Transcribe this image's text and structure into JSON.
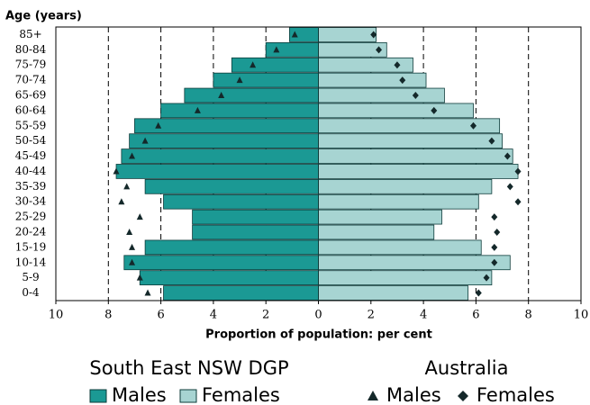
{
  "chart_data": {
    "type": "pyramid",
    "y_label": "Age (years)",
    "x_label": "Proportion of population: per cent",
    "categories": [
      "85+",
      "80-84",
      "75-79",
      "70-74",
      "65-69",
      "60-64",
      "55-59",
      "50-54",
      "45-49",
      "40-44",
      "35-39",
      "30-34",
      "25-29",
      "20-24",
      "15-19",
      "10-14",
      "5-9",
      "0-4"
    ],
    "xlim": [
      -10,
      10
    ],
    "xticks": [
      {
        "value": -10,
        "label": "10"
      },
      {
        "value": -8,
        "label": "8"
      },
      {
        "value": -6,
        "label": "6"
      },
      {
        "value": -4,
        "label": "4"
      },
      {
        "value": -2,
        "label": "2"
      },
      0,
      2,
      4,
      6,
      8,
      10
    ],
    "grid": true,
    "groups": [
      {
        "title": "South East NSW DGP",
        "series": [
          {
            "name": "Males",
            "side": "left",
            "style": "bar",
            "color": "#1b9994",
            "values": [
              1.1,
              2.0,
              3.3,
              4.0,
              5.1,
              6.0,
              7.0,
              7.2,
              7.5,
              7.7,
              6.6,
              5.9,
              4.8,
              4.8,
              6.6,
              7.4,
              6.8,
              5.9
            ]
          },
          {
            "name": "Females",
            "side": "right",
            "style": "bar",
            "color": "#a7d4d2",
            "values": [
              2.2,
              2.6,
              3.6,
              4.1,
              4.8,
              5.9,
              6.9,
              7.0,
              7.4,
              7.6,
              6.6,
              6.1,
              4.7,
              4.4,
              6.2,
              7.3,
              6.6,
              5.7
            ]
          }
        ]
      },
      {
        "title": "Australia",
        "series": [
          {
            "name": "Males",
            "side": "left",
            "style": "triangle",
            "color": "#14282a",
            "values": [
              0.9,
              1.6,
              2.5,
              3.0,
              3.7,
              4.6,
              6.1,
              6.6,
              7.1,
              7.7,
              7.3,
              7.5,
              6.8,
              7.2,
              7.1,
              7.1,
              6.8,
              6.5
            ]
          },
          {
            "name": "Females",
            "side": "right",
            "style": "diamond",
            "color": "#14282a",
            "values": [
              2.1,
              2.3,
              3.0,
              3.2,
              3.7,
              4.4,
              5.9,
              6.6,
              7.2,
              7.6,
              7.3,
              7.6,
              6.7,
              6.8,
              6.7,
              6.7,
              6.4,
              6.1
            ]
          }
        ]
      }
    ]
  }
}
